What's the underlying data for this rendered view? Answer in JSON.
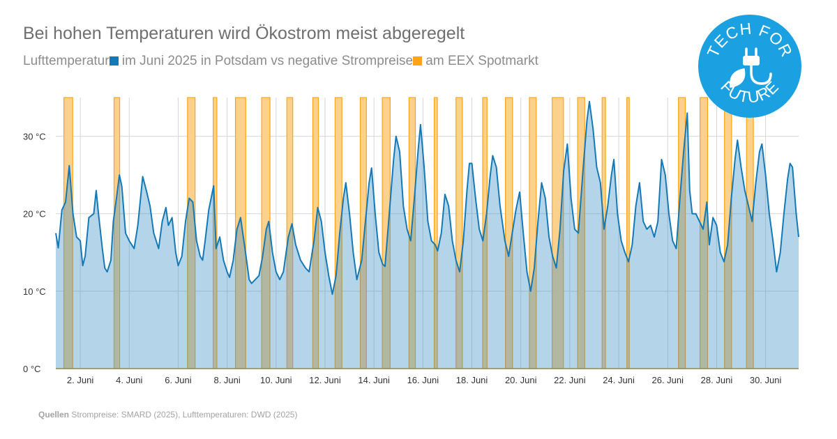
{
  "title": "Bei hohen Temperaturen wird Ökostrom meist abgeregelt",
  "subtitle": {
    "part1": "Lufttemperatur",
    "part2": "im Juni 2025 in Potsdam vs negative Strompreise",
    "part3": "am EEX Spotmarkt"
  },
  "colors": {
    "temperature": "#1479b6",
    "temperature_fill": "#b3d6ea",
    "negative_price": "#ffa31a",
    "negative_price_fill": "#fccf85"
  },
  "source": {
    "label": "Quellen",
    "text": "Strompreise: SMARD (2025), Lufttemperaturen: DWD (2025)"
  },
  "logo": {
    "top_text": "TECH FOR",
    "bottom_text": "FUTURE",
    "icon": "plug-leaf-icon"
  },
  "chart_data": {
    "type": "area",
    "title": "Bei hohen Temperaturen wird Ökostrom meist abgeregelt",
    "xlabel": "",
    "ylabel": "",
    "ylim": [
      0,
      35
    ],
    "y_ticks": [
      0,
      10,
      20,
      30
    ],
    "y_tick_labels": [
      "0 °C",
      "10 °C",
      "20 °C",
      "30 °C"
    ],
    "xlim": [
      1,
      31
    ],
    "x_ticks": [
      2,
      4,
      6,
      8,
      10,
      12,
      14,
      16,
      18,
      20,
      22,
      24,
      26,
      28,
      30
    ],
    "x_tick_labels": [
      "2. Juni",
      "4. Juni",
      "6. Juni",
      "8. Juni",
      "10. Juni",
      "12. Juni",
      "14. Juni",
      "16. Juni",
      "18. Juni",
      "20. Juni",
      "22. Juni",
      "24. Juni",
      "26. Juni",
      "28. Juni",
      "30. Juni"
    ],
    "grid": true,
    "series": [
      {
        "name": "Lufttemperatur Potsdam (°C)",
        "kind": "area",
        "x_unit": "day of June (fractional)",
        "points": [
          [
            1.0,
            17.5
          ],
          [
            1.1,
            15.6
          ],
          [
            1.25,
            20.5
          ],
          [
            1.4,
            21.5
          ],
          [
            1.55,
            26.2
          ],
          [
            1.7,
            20.0
          ],
          [
            1.85,
            17.0
          ],
          [
            2.0,
            16.5
          ],
          [
            2.1,
            13.3
          ],
          [
            2.2,
            14.5
          ],
          [
            2.35,
            19.5
          ],
          [
            2.55,
            20.0
          ],
          [
            2.65,
            23.0
          ],
          [
            2.75,
            19.8
          ],
          [
            2.9,
            15.5
          ],
          [
            3.0,
            13.0
          ],
          [
            3.1,
            12.5
          ],
          [
            3.25,
            14.0
          ],
          [
            3.35,
            19.0
          ],
          [
            3.5,
            22.5
          ],
          [
            3.6,
            25.0
          ],
          [
            3.7,
            23.5
          ],
          [
            3.85,
            17.5
          ],
          [
            4.0,
            16.5
          ],
          [
            4.2,
            15.5
          ],
          [
            4.35,
            18.5
          ],
          [
            4.55,
            24.8
          ],
          [
            4.7,
            23.0
          ],
          [
            4.85,
            21.0
          ],
          [
            5.0,
            17.5
          ],
          [
            5.2,
            15.5
          ],
          [
            5.35,
            19.0
          ],
          [
            5.5,
            20.8
          ],
          [
            5.6,
            18.5
          ],
          [
            5.75,
            19.5
          ],
          [
            5.9,
            15.0
          ],
          [
            6.0,
            13.3
          ],
          [
            6.15,
            14.5
          ],
          [
            6.3,
            19.0
          ],
          [
            6.45,
            22.0
          ],
          [
            6.6,
            21.5
          ],
          [
            6.75,
            16.5
          ],
          [
            6.9,
            14.5
          ],
          [
            7.0,
            14.0
          ],
          [
            7.1,
            16.5
          ],
          [
            7.25,
            20.5
          ],
          [
            7.45,
            23.6
          ],
          [
            7.55,
            15.5
          ],
          [
            7.7,
            17.0
          ],
          [
            7.85,
            14.0
          ],
          [
            8.0,
            12.5
          ],
          [
            8.1,
            11.8
          ],
          [
            8.25,
            14.0
          ],
          [
            8.4,
            18.0
          ],
          [
            8.55,
            19.5
          ],
          [
            8.75,
            15.0
          ],
          [
            8.9,
            11.5
          ],
          [
            9.0,
            11.0
          ],
          [
            9.15,
            11.5
          ],
          [
            9.3,
            12.0
          ],
          [
            9.45,
            14.5
          ],
          [
            9.6,
            18.0
          ],
          [
            9.7,
            19.0
          ],
          [
            9.85,
            15.0
          ],
          [
            10.0,
            12.5
          ],
          [
            10.15,
            11.5
          ],
          [
            10.3,
            12.5
          ],
          [
            10.5,
            17.0
          ],
          [
            10.65,
            18.7
          ],
          [
            10.8,
            16.0
          ],
          [
            11.0,
            14.0
          ],
          [
            11.2,
            13.0
          ],
          [
            11.35,
            12.5
          ],
          [
            11.55,
            16.5
          ],
          [
            11.7,
            20.8
          ],
          [
            11.85,
            19.0
          ],
          [
            12.0,
            15.0
          ],
          [
            12.15,
            12.0
          ],
          [
            12.3,
            9.6
          ],
          [
            12.45,
            12.0
          ],
          [
            12.6,
            17.5
          ],
          [
            12.75,
            22.0
          ],
          [
            12.85,
            24.0
          ],
          [
            13.0,
            20.0
          ],
          [
            13.15,
            15.0
          ],
          [
            13.3,
            11.5
          ],
          [
            13.5,
            14.0
          ],
          [
            13.65,
            19.0
          ],
          [
            13.8,
            24.0
          ],
          [
            13.9,
            25.9
          ],
          [
            14.05,
            20.0
          ],
          [
            14.2,
            15.0
          ],
          [
            14.35,
            13.5
          ],
          [
            14.45,
            13.2
          ],
          [
            14.6,
            19.0
          ],
          [
            14.8,
            27.0
          ],
          [
            14.9,
            30.0
          ],
          [
            15.05,
            28.0
          ],
          [
            15.2,
            21.0
          ],
          [
            15.35,
            18.0
          ],
          [
            15.5,
            16.5
          ],
          [
            15.65,
            22.0
          ],
          [
            15.8,
            28.0
          ],
          [
            15.9,
            31.5
          ],
          [
            16.05,
            26.0
          ],
          [
            16.2,
            19.0
          ],
          [
            16.35,
            16.5
          ],
          [
            16.5,
            16.0
          ],
          [
            16.6,
            15.2
          ],
          [
            16.75,
            17.5
          ],
          [
            16.9,
            22.5
          ],
          [
            17.05,
            21.0
          ],
          [
            17.2,
            16.5
          ],
          [
            17.35,
            14.0
          ],
          [
            17.5,
            12.5
          ],
          [
            17.65,
            16.5
          ],
          [
            17.8,
            23.0
          ],
          [
            17.9,
            26.5
          ],
          [
            18.0,
            26.5
          ],
          [
            18.15,
            22.0
          ],
          [
            18.3,
            18.0
          ],
          [
            18.45,
            16.5
          ],
          [
            18.6,
            20.0
          ],
          [
            18.75,
            25.0
          ],
          [
            18.85,
            27.5
          ],
          [
            19.0,
            26.0
          ],
          [
            19.15,
            21.0
          ],
          [
            19.35,
            16.5
          ],
          [
            19.5,
            14.5
          ],
          [
            19.65,
            17.5
          ],
          [
            19.8,
            20.5
          ],
          [
            19.95,
            22.8
          ],
          [
            20.1,
            17.5
          ],
          [
            20.25,
            12.5
          ],
          [
            20.4,
            10.0
          ],
          [
            20.55,
            13.0
          ],
          [
            20.7,
            19.0
          ],
          [
            20.85,
            24.0
          ],
          [
            21.0,
            22.0
          ],
          [
            21.15,
            17.0
          ],
          [
            21.3,
            14.5
          ],
          [
            21.45,
            13.0
          ],
          [
            21.6,
            18.0
          ],
          [
            21.75,
            25.5
          ],
          [
            21.9,
            29.0
          ],
          [
            22.05,
            22.0
          ],
          [
            22.2,
            18.0
          ],
          [
            22.35,
            17.5
          ],
          [
            22.55,
            26.0
          ],
          [
            22.7,
            32.0
          ],
          [
            22.8,
            34.5
          ],
          [
            22.95,
            31.0
          ],
          [
            23.1,
            26.0
          ],
          [
            23.25,
            24.0
          ],
          [
            23.4,
            18.0
          ],
          [
            23.55,
            21.0
          ],
          [
            23.7,
            25.0
          ],
          [
            23.8,
            27.0
          ],
          [
            23.95,
            20.0
          ],
          [
            24.1,
            16.5
          ],
          [
            24.25,
            15.0
          ],
          [
            24.4,
            13.8
          ],
          [
            24.55,
            16.0
          ],
          [
            24.7,
            21.0
          ],
          [
            24.85,
            24.0
          ],
          [
            25.0,
            19.0
          ],
          [
            25.15,
            18.0
          ],
          [
            25.3,
            18.5
          ],
          [
            25.45,
            17.0
          ],
          [
            25.6,
            19.0
          ],
          [
            25.75,
            27.0
          ],
          [
            25.9,
            25.0
          ],
          [
            26.05,
            20.0
          ],
          [
            26.2,
            16.5
          ],
          [
            26.35,
            15.5
          ],
          [
            26.5,
            22.0
          ],
          [
            26.65,
            28.0
          ],
          [
            26.8,
            33.0
          ],
          [
            26.9,
            23.0
          ],
          [
            27.0,
            20.0
          ],
          [
            27.15,
            20.0
          ],
          [
            27.3,
            19.0
          ],
          [
            27.45,
            18.0
          ],
          [
            27.6,
            21.5
          ],
          [
            27.7,
            16.0
          ],
          [
            27.85,
            19.5
          ],
          [
            28.0,
            18.5
          ],
          [
            28.15,
            15.0
          ],
          [
            28.3,
            13.8
          ],
          [
            28.45,
            16.0
          ],
          [
            28.6,
            22.0
          ],
          [
            28.75,
            27.0
          ],
          [
            28.85,
            29.5
          ],
          [
            29.0,
            26.0
          ],
          [
            29.15,
            23.0
          ],
          [
            29.3,
            21.0
          ],
          [
            29.45,
            19.0
          ],
          [
            29.6,
            24.0
          ],
          [
            29.75,
            28.0
          ],
          [
            29.85,
            29.0
          ],
          [
            30.0,
            25.0
          ],
          [
            30.15,
            20.0
          ],
          [
            30.3,
            16.5
          ],
          [
            30.45,
            12.5
          ],
          [
            30.6,
            15.0
          ],
          [
            30.75,
            20.0
          ],
          [
            30.9,
            24.5
          ],
          [
            31.0,
            26.5
          ],
          [
            31.1,
            26.0
          ],
          [
            31.25,
            20.0
          ],
          [
            31.35,
            17.0
          ]
        ]
      },
      {
        "name": "Negative Strompreise (EEX Spotmarkt)",
        "kind": "intervals",
        "x_unit": "day of June (fractional)",
        "intervals": [
          [
            1.33,
            1.69
          ],
          [
            3.38,
            3.61
          ],
          [
            6.38,
            6.69
          ],
          [
            7.43,
            7.58
          ],
          [
            8.34,
            8.76
          ],
          [
            9.41,
            9.75
          ],
          [
            10.44,
            10.68
          ],
          [
            11.5,
            11.73
          ],
          [
            12.41,
            12.69
          ],
          [
            13.44,
            13.69
          ],
          [
            14.34,
            14.66
          ],
          [
            15.43,
            15.69
          ],
          [
            16.46,
            16.59
          ],
          [
            17.35,
            17.61
          ],
          [
            18.44,
            18.62
          ],
          [
            19.37,
            19.66
          ],
          [
            20.35,
            20.63
          ],
          [
            21.28,
            21.74
          ],
          [
            22.32,
            22.61
          ],
          [
            23.32,
            23.46
          ],
          [
            24.33,
            24.43
          ],
          [
            26.44,
            26.72
          ],
          [
            27.32,
            27.63
          ],
          [
            28.32,
            28.61
          ],
          [
            29.22,
            29.5
          ]
        ]
      }
    ]
  }
}
